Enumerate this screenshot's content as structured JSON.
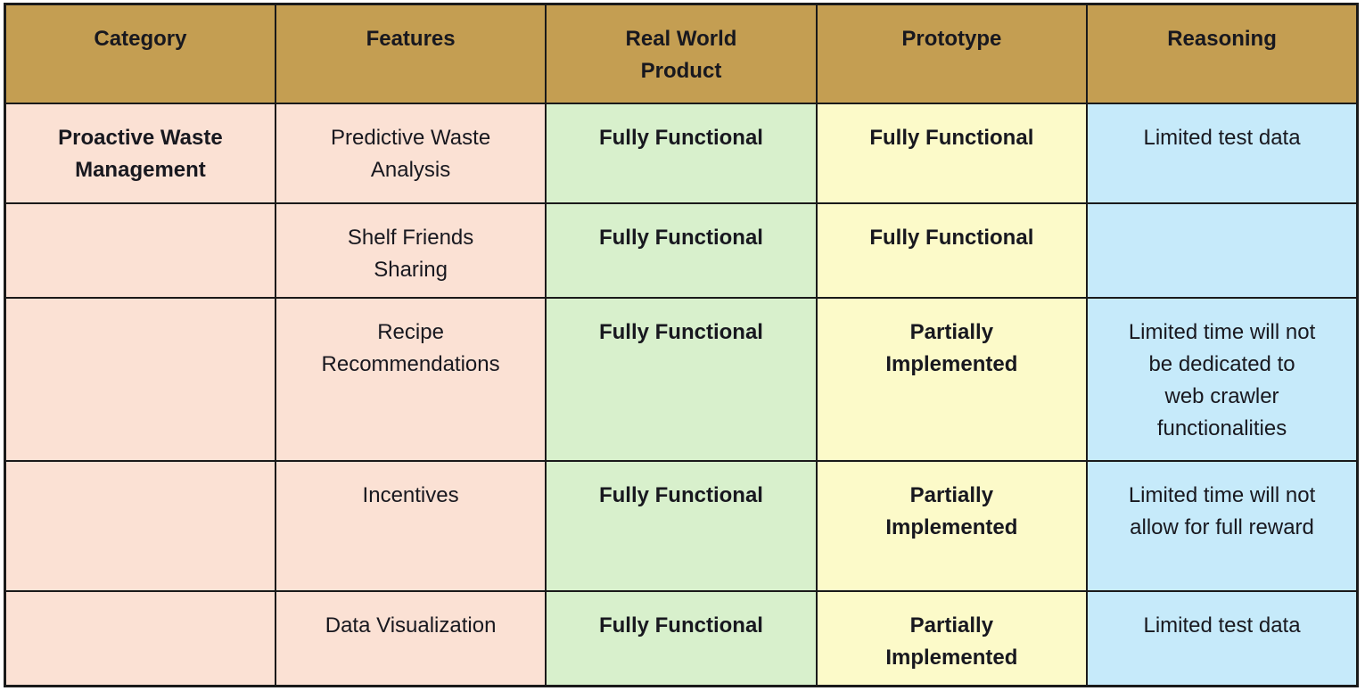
{
  "colors": {
    "header-bg": "#C49E52",
    "category-bg": "#FBE1D4",
    "real-bg": "#D8F0CC",
    "proto-bg": "#FCFAC9",
    "reason-bg": "#C6EAFA",
    "border": "#1A1A1A",
    "text": "#18181F"
  },
  "table": {
    "headers": [
      "Category",
      "Features",
      "Real World Product",
      "Prototype",
      "Reasoning"
    ],
    "rows": [
      {
        "category": "Proactive Waste Management",
        "feature": "Predictive Waste Analysis",
        "real_world": "Fully Functional",
        "prototype": "Fully Functional",
        "reasoning": "Limited test data"
      },
      {
        "category": "",
        "feature": "Shelf Friends Sharing",
        "real_world": "Fully Functional",
        "prototype": "Fully Functional",
        "reasoning": ""
      },
      {
        "category": "",
        "feature": "Recipe Recommendations",
        "real_world": "Fully Functional",
        "prototype": "Partially Implemented",
        "reasoning": "Limited time will not be dedicated to web crawler functionalities"
      },
      {
        "category": "",
        "feature": "Incentives",
        "real_world": "Fully Functional",
        "prototype": "Partially Implemented",
        "reasoning": "Limited time will not allow for full reward"
      },
      {
        "category": "",
        "feature": "Data Visualization",
        "real_world": "Fully Functional",
        "prototype": "Partially Implemented",
        "reasoning": "Limited test data"
      }
    ]
  }
}
